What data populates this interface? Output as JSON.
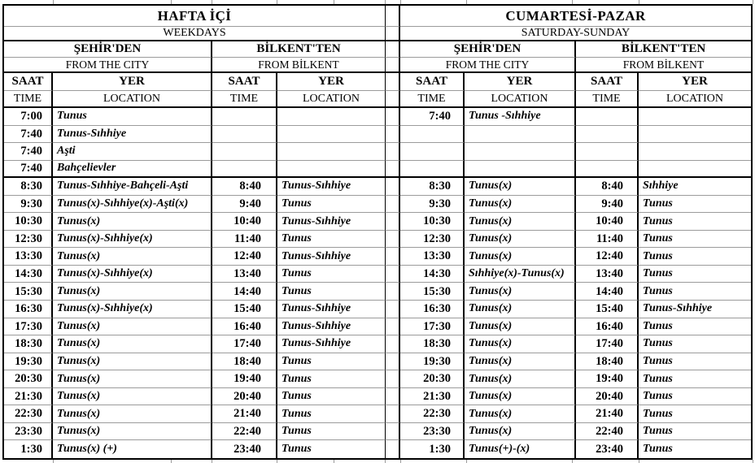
{
  "table": {
    "grid_color": "#9b9b9b",
    "border_color": "#000000",
    "halves": [
      {
        "day_tr": "HAFTA İÇİ",
        "day_en": "WEEKDAYS",
        "from_city_tr": "ŞEHİR'DEN",
        "from_city_en": "FROM THE CITY",
        "from_bilkent_tr": "BİLKENT'TEN",
        "from_bilkent_en": "FROM BİLKENT"
      },
      {
        "day_tr": "CUMARTESİ-PAZAR",
        "day_en": "SATURDAY-SUNDAY",
        "from_city_tr": "ŞEHİR'DEN",
        "from_city_en": "FROM THE CITY",
        "from_bilkent_tr": "BİLKENT'TEN",
        "from_bilkent_en": "FROM BİLKENT"
      }
    ],
    "col": {
      "time_tr": "SAAT",
      "time_en": "TIME",
      "loc_tr": "YER",
      "loc_en": "LOCATION"
    },
    "rows": [
      [
        "7:00",
        "Tunus",
        "",
        "",
        "7:40",
        "Tunus -Sıhhiye",
        "",
        ""
      ],
      [
        "7:40",
        "Tunus-Sıhhiye",
        "",
        "",
        "",
        "",
        "",
        ""
      ],
      [
        "7:40",
        "Aşti",
        "",
        "",
        "",
        "",
        "",
        ""
      ],
      [
        "7:40",
        "Bahçelievler",
        "",
        "",
        "",
        "",
        "",
        ""
      ],
      [
        "8:30",
        "Tunus-Sıhhiye-Bahçeli-Aşti",
        "8:40",
        "Tunus-Sıhhiye",
        "8:30",
        "Tunus(x)",
        "8:40",
        "Sıhhiye"
      ],
      [
        "9:30",
        "Tunus(x)-Sıhhiye(x)-Aşti(x)",
        "9:40",
        "Tunus",
        "9:30",
        "Tunus(x)",
        "9:40",
        "Tunus"
      ],
      [
        "10:30",
        "Tunus(x)",
        "10:40",
        "Tunus-Sıhhiye",
        "10:30",
        "Tunus(x)",
        "10:40",
        "Tunus"
      ],
      [
        "12:30",
        "Tunus(x)-Sıhhiye(x)",
        "11:40",
        "Tunus",
        "12:30",
        "Tunus(x)",
        "11:40",
        "Tunus"
      ],
      [
        "13:30",
        "Tunus(x)",
        "12:40",
        "Tunus-Sıhhiye",
        "13:30",
        "Tunus(x)",
        "12:40",
        "Tunus"
      ],
      [
        "14:30",
        "Tunus(x)-Sıhhiye(x)",
        "13:40",
        "Tunus",
        "14:30",
        "Sıhhiye(x)-Tunus(x)",
        "13:40",
        "Tunus"
      ],
      [
        "15:30",
        "Tunus(x)",
        "14:40",
        "Tunus",
        "15:30",
        "Tunus(x)",
        "14:40",
        "Tunus"
      ],
      [
        "16:30",
        "Tunus(x)-Sıhhiye(x)",
        "15:40",
        "Tunus-Sıhhiye",
        "16:30",
        "Tunus(x)",
        "15:40",
        "Tunus-Sıhhiye"
      ],
      [
        "17:30",
        "Tunus(x)",
        "16:40",
        "Tunus-Sıhhiye",
        "17:30",
        "Tunus(x)",
        "16:40",
        "Tunus"
      ],
      [
        "18:30",
        "Tunus(x)",
        "17:40",
        "Tunus-Sıhhiye",
        "18:30",
        "Tunus(x)",
        "17:40",
        "Tunus"
      ],
      [
        "19:30",
        "Tunus(x)",
        "18:40",
        "Tunus",
        "19:30",
        "Tunus(x)",
        "18:40",
        "Tunus"
      ],
      [
        "20:30",
        "Tunus(x)",
        "19:40",
        "Tunus",
        "20:30",
        "Tunus(x)",
        "19:40",
        "Tunus"
      ],
      [
        "21:30",
        "Tunus(x)",
        "20:40",
        "Tunus",
        "21:30",
        "Tunus(x)",
        "20:40",
        "Tunus"
      ],
      [
        "22:30",
        "Tunus(x)",
        "21:40",
        "Tunus",
        "22:30",
        "Tunus(x)",
        "21:40",
        "Tunus"
      ],
      [
        "23:30",
        "Tunus(x)",
        "22:40",
        "Tunus",
        "23:30",
        "Tunus(x)",
        "22:40",
        "Tunus"
      ],
      [
        "1:30",
        "Tunus(x) (+)",
        "23:40",
        "Tunus",
        "1:30",
        "Tunus(+)-(x)",
        "23:40",
        "Tunus"
      ]
    ]
  }
}
